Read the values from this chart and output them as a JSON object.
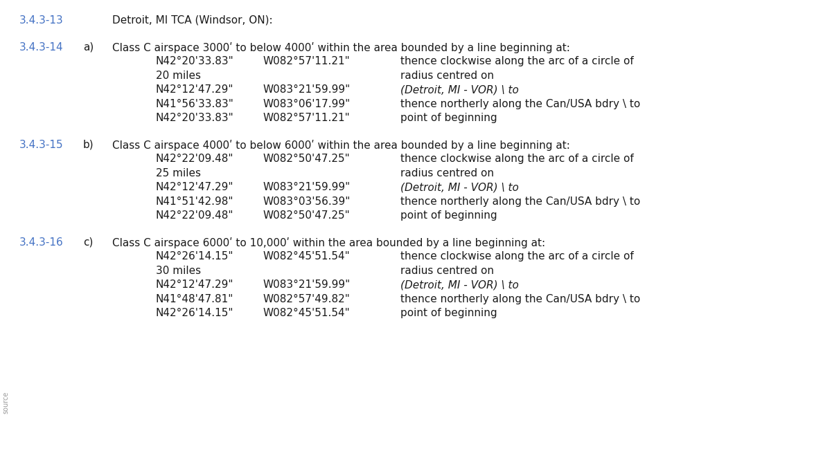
{
  "background_color": "#ffffff",
  "blue_color": "#4472C4",
  "black_color": "#1a1a1a",
  "font_size": 11.0,
  "title_row": {
    "ref": "3.4.3-13",
    "text": "Detroit, MI TCA (Windsor, ON):"
  },
  "sections": [
    {
      "ref": "3.4.3-14",
      "letter": "a)",
      "header": "Class C airspace 3000ʹ to below 4000ʹ within the area bounded by a line beginning at:",
      "coords": [
        [
          "N42°20'33.83\"",
          "W082°57'11.21\""
        ],
        [
          "20 miles",
          ""
        ],
        [
          "N42°12'47.29\"",
          "W083°21'59.99\""
        ],
        [
          "N41°56'33.83\"",
          "W083°06'17.99\""
        ],
        [
          "N42°20'33.83\"",
          "W082°57'11.21\""
        ]
      ],
      "right_texts": [
        [
          "thence clockwise along the arc of a circle of",
          false
        ],
        [
          "radius centred on",
          false
        ],
        [
          "(Detroit, MI - VOR) \\ to",
          true
        ],
        [
          "thence northerly along the Can/USA bdry \\ to",
          false
        ],
        [
          "point of beginning",
          false
        ]
      ],
      "italic_row": 2
    },
    {
      "ref": "3.4.3-15",
      "letter": "b)",
      "header": "Class C airspace 4000ʹ to below 6000ʹ within the area bounded by a line beginning at:",
      "coords": [
        [
          "N42°22'09.48\"",
          "W082°50'47.25\""
        ],
        [
          "25 miles",
          ""
        ],
        [
          "N42°12'47.29\"",
          "W083°21'59.99\""
        ],
        [
          "N41°51'42.98\"",
          "W083°03'56.39\""
        ],
        [
          "N42°22'09.48\"",
          "W082°50'47.25\""
        ]
      ],
      "right_texts": [
        [
          "thence clockwise along the arc of a circle of",
          false
        ],
        [
          "radius centred on",
          false
        ],
        [
          "(Detroit, MI - VOR) \\ to",
          true
        ],
        [
          "thence northerly along the Can/USA bdry \\ to",
          false
        ],
        [
          "point of beginning",
          false
        ]
      ],
      "italic_row": 2
    },
    {
      "ref": "3.4.3-16",
      "letter": "c)",
      "header": "Class C airspace 6000ʹ to 10,000ʹ within the area bounded by a line beginning at:",
      "coords": [
        [
          "N42°26'14.15\"",
          "W082°45'51.54\""
        ],
        [
          "30 miles",
          ""
        ],
        [
          "N42°12'47.29\"",
          "W083°21'59.99\""
        ],
        [
          "N41°48'47.81\"",
          "W082°57'49.82\""
        ],
        [
          "N42°26'14.15\"",
          "W082°45'51.54\""
        ]
      ],
      "right_texts": [
        [
          "thence clockwise along the arc of a circle of",
          false
        ],
        [
          "radius centred on",
          false
        ],
        [
          "(Detroit, MI - VOR) \\ to",
          true
        ],
        [
          "thence northerly along the Can/USA bdry \\ to",
          false
        ],
        [
          "point of beginning",
          false
        ]
      ],
      "italic_row": 2
    }
  ],
  "source_label": "source"
}
